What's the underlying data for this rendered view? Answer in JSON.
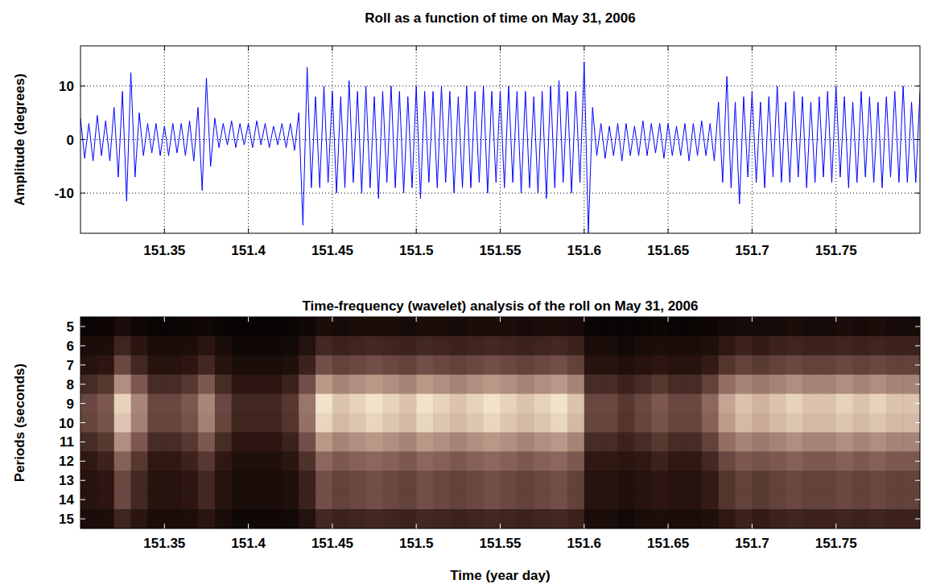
{
  "chart_data": [
    {
      "type": "line",
      "title": "Roll as a function of time on May 31, 2006",
      "y_label": "Amplitude (degrees)",
      "color": "#0000ff",
      "grid": true,
      "xlim": [
        151.3,
        151.8
      ],
      "ylim": [
        -17.5,
        17.5
      ],
      "xticks": [
        151.35,
        151.4,
        151.45,
        151.5,
        151.55,
        151.6,
        151.65,
        151.7,
        151.75
      ],
      "yticks": [
        -10,
        0,
        10
      ],
      "x": [
        151.3,
        151.3025,
        151.305,
        151.3075,
        151.31,
        151.3125,
        151.315,
        151.3175,
        151.32,
        151.3225,
        151.325,
        151.3275,
        151.33,
        151.3325,
        151.335,
        151.3375,
        151.34,
        151.3425,
        151.345,
        151.3475,
        151.35,
        151.3525,
        151.355,
        151.3575,
        151.36,
        151.3625,
        151.365,
        151.3675,
        151.37,
        151.3725,
        151.375,
        151.3775,
        151.38,
        151.3825,
        151.385,
        151.3875,
        151.39,
        151.3925,
        151.395,
        151.3975,
        151.4,
        151.4025,
        151.405,
        151.4075,
        151.41,
        151.4125,
        151.415,
        151.4175,
        151.42,
        151.4225,
        151.425,
        151.4275,
        151.43,
        151.4325,
        151.435,
        151.4375,
        151.44,
        151.4425,
        151.445,
        151.4475,
        151.45,
        151.4525,
        151.455,
        151.4575,
        151.46,
        151.4625,
        151.465,
        151.4675,
        151.47,
        151.4725,
        151.475,
        151.4775,
        151.48,
        151.4825,
        151.485,
        151.4875,
        151.49,
        151.4925,
        151.495,
        151.4975,
        151.5,
        151.5025,
        151.505,
        151.5075,
        151.51,
        151.5125,
        151.515,
        151.5175,
        151.52,
        151.5225,
        151.525,
        151.5275,
        151.53,
        151.5325,
        151.535,
        151.5375,
        151.54,
        151.5425,
        151.545,
        151.5475,
        151.55,
        151.5525,
        151.555,
        151.5575,
        151.56,
        151.5625,
        151.565,
        151.5675,
        151.57,
        151.5725,
        151.575,
        151.5775,
        151.58,
        151.5825,
        151.585,
        151.5875,
        151.59,
        151.5925,
        151.595,
        151.5975,
        151.6,
        151.6025,
        151.605,
        151.6075,
        151.61,
        151.6125,
        151.615,
        151.6175,
        151.62,
        151.6225,
        151.625,
        151.6275,
        151.63,
        151.6325,
        151.635,
        151.6375,
        151.64,
        151.6425,
        151.645,
        151.6475,
        151.65,
        151.6525,
        151.655,
        151.6575,
        151.66,
        151.6625,
        151.665,
        151.6675,
        151.67,
        151.6725,
        151.675,
        151.6775,
        151.68,
        151.6825,
        151.685,
        151.6875,
        151.69,
        151.6925,
        151.695,
        151.6975,
        151.7,
        151.7025,
        151.705,
        151.7075,
        151.71,
        151.7125,
        151.715,
        151.7175,
        151.72,
        151.7225,
        151.725,
        151.7275,
        151.73,
        151.7325,
        151.735,
        151.7375,
        151.74,
        151.7425,
        151.745,
        151.7475,
        151.75,
        151.7525,
        151.755,
        151.7575,
        151.76,
        151.7625,
        151.765,
        151.7675,
        151.77,
        151.7725,
        151.775,
        151.7775,
        151.78,
        151.7825,
        151.785,
        151.7875,
        151.79,
        151.7925,
        151.795,
        151.7975,
        151.8
      ],
      "values": [
        4,
        -3.5,
        3,
        -4,
        4.5,
        -3,
        3.5,
        -4,
        6,
        -7,
        9,
        -11.5,
        12.5,
        -7,
        5,
        -3,
        3,
        -2.5,
        3,
        -3,
        2.5,
        -3,
        3,
        -2.5,
        3,
        -3,
        3.5,
        -4,
        6,
        -9.5,
        11.5,
        -5,
        4,
        -1.5,
        3,
        -1,
        3.5,
        -1.5,
        3,
        -1,
        3,
        -1.5,
        3.5,
        -1,
        3,
        -1.5,
        2.5,
        -1,
        3,
        -1.5,
        3,
        -2,
        5,
        -16,
        13.5,
        -9,
        8,
        -9,
        10,
        -8,
        9,
        -10,
        8,
        -9,
        11,
        -8,
        9,
        -10,
        10,
        -9,
        8,
        -11,
        9,
        -8,
        10,
        -9,
        9,
        -10,
        8,
        -9,
        10,
        -11,
        9,
        -8,
        9,
        -9,
        10,
        -8,
        9,
        -10,
        8,
        -9,
        10,
        -9,
        9,
        -8,
        10,
        -10,
        9,
        -8,
        9,
        -9,
        10,
        -8,
        9,
        -10,
        9,
        -9,
        8,
        -10,
        9,
        -11,
        10,
        -9,
        11,
        -8,
        9,
        -10,
        9,
        -8,
        14.5,
        -17.5,
        6,
        -3,
        3,
        -3.5,
        2.5,
        -3,
        3,
        -4,
        3,
        -3,
        2.5,
        -3,
        3.5,
        -3,
        3,
        -2.5,
        3,
        -3.5,
        3,
        -3,
        2.5,
        -3,
        3,
        -4,
        3,
        -3,
        3.5,
        -3,
        3,
        -4,
        7,
        -8,
        11.8,
        -9,
        7,
        -12,
        8,
        -7,
        9,
        -8,
        7,
        -9,
        8,
        -7,
        10,
        -8,
        7,
        -8,
        9,
        -7,
        8,
        -9,
        7,
        -8,
        8,
        -7,
        9,
        -8,
        10,
        -7,
        8,
        -9,
        7,
        -8,
        9,
        -7,
        8,
        -8,
        7,
        -9,
        8,
        -7,
        9,
        -8,
        10,
        -8,
        7,
        -8,
        9
      ]
    },
    {
      "type": "heatmap",
      "title": "Time-frequency (wavelet) analysis of the roll on May 31, 2006",
      "x_label": "Time (year day)",
      "y_label": "Periods (seconds)",
      "grid": false,
      "xlim": [
        151.3,
        151.8
      ],
      "ylim": [
        4.5,
        15.5
      ],
      "xticks": [
        151.35,
        151.4,
        151.45,
        151.5,
        151.55,
        151.6,
        151.65,
        151.7,
        151.75
      ],
      "yticks": [
        5,
        6,
        7,
        8,
        9,
        10,
        11,
        12,
        13,
        14,
        15
      ],
      "x": [
        151.305,
        151.315,
        151.325,
        151.335,
        151.345,
        151.355,
        151.365,
        151.375,
        151.385,
        151.395,
        151.405,
        151.415,
        151.425,
        151.435,
        151.445,
        151.455,
        151.465,
        151.475,
        151.485,
        151.495,
        151.505,
        151.515,
        151.525,
        151.535,
        151.545,
        151.555,
        151.565,
        151.575,
        151.585,
        151.595,
        151.605,
        151.615,
        151.625,
        151.635,
        151.645,
        151.655,
        151.665,
        151.675,
        151.685,
        151.695,
        151.705,
        151.715,
        151.725,
        151.735,
        151.745,
        151.755,
        151.765,
        151.775,
        151.785,
        151.795
      ],
      "y": [
        5,
        6,
        7,
        8,
        9,
        10,
        11,
        12,
        13,
        14,
        15
      ],
      "values": [
        [
          0.03,
          0.04,
          0.08,
          0.05,
          0.03,
          0.03,
          0.04,
          0.05,
          0.03,
          0.02,
          0.02,
          0.02,
          0.03,
          0.05,
          0.08,
          0.07,
          0.08,
          0.08,
          0.08,
          0.07,
          0.08,
          0.08,
          0.07,
          0.08,
          0.08,
          0.08,
          0.07,
          0.08,
          0.08,
          0.07,
          0.03,
          0.03,
          0.03,
          0.03,
          0.04,
          0.03,
          0.03,
          0.04,
          0.06,
          0.07,
          0.07,
          0.07,
          0.08,
          0.07,
          0.07,
          0.08,
          0.07,
          0.08,
          0.07,
          0.07
        ],
        [
          0.08,
          0.09,
          0.19,
          0.13,
          0.08,
          0.08,
          0.09,
          0.13,
          0.08,
          0.05,
          0.05,
          0.05,
          0.06,
          0.11,
          0.2,
          0.18,
          0.19,
          0.2,
          0.19,
          0.18,
          0.2,
          0.19,
          0.18,
          0.19,
          0.2,
          0.19,
          0.18,
          0.19,
          0.2,
          0.18,
          0.08,
          0.08,
          0.06,
          0.08,
          0.09,
          0.08,
          0.08,
          0.1,
          0.15,
          0.18,
          0.16,
          0.18,
          0.19,
          0.18,
          0.18,
          0.19,
          0.18,
          0.19,
          0.18,
          0.18
        ],
        [
          0.12,
          0.14,
          0.3,
          0.2,
          0.12,
          0.12,
          0.14,
          0.2,
          0.12,
          0.08,
          0.08,
          0.08,
          0.1,
          0.18,
          0.32,
          0.28,
          0.3,
          0.32,
          0.3,
          0.28,
          0.32,
          0.3,
          0.28,
          0.3,
          0.32,
          0.3,
          0.28,
          0.3,
          0.32,
          0.28,
          0.12,
          0.12,
          0.1,
          0.12,
          0.14,
          0.12,
          0.12,
          0.16,
          0.24,
          0.28,
          0.26,
          0.28,
          0.3,
          0.28,
          0.28,
          0.3,
          0.28,
          0.3,
          0.28,
          0.28
        ],
        [
          0.21,
          0.25,
          0.53,
          0.35,
          0.21,
          0.21,
          0.25,
          0.35,
          0.21,
          0.14,
          0.14,
          0.14,
          0.18,
          0.32,
          0.56,
          0.49,
          0.53,
          0.56,
          0.53,
          0.49,
          0.56,
          0.53,
          0.49,
          0.53,
          0.56,
          0.53,
          0.49,
          0.53,
          0.56,
          0.49,
          0.21,
          0.21,
          0.18,
          0.21,
          0.25,
          0.21,
          0.21,
          0.28,
          0.42,
          0.49,
          0.46,
          0.49,
          0.53,
          0.49,
          0.49,
          0.53,
          0.49,
          0.53,
          0.49,
          0.49
        ],
        [
          0.3,
          0.35,
          0.75,
          0.5,
          0.3,
          0.3,
          0.35,
          0.5,
          0.3,
          0.2,
          0.2,
          0.2,
          0.25,
          0.45,
          0.8,
          0.7,
          0.75,
          0.8,
          0.75,
          0.7,
          0.8,
          0.75,
          0.7,
          0.75,
          0.8,
          0.75,
          0.7,
          0.75,
          0.8,
          0.7,
          0.3,
          0.3,
          0.25,
          0.3,
          0.35,
          0.3,
          0.3,
          0.4,
          0.6,
          0.7,
          0.65,
          0.7,
          0.75,
          0.7,
          0.7,
          0.75,
          0.7,
          0.75,
          0.7,
          0.7
        ],
        [
          0.29,
          0.33,
          0.71,
          0.48,
          0.29,
          0.29,
          0.33,
          0.48,
          0.29,
          0.19,
          0.19,
          0.19,
          0.24,
          0.43,
          0.76,
          0.67,
          0.71,
          0.76,
          0.71,
          0.67,
          0.76,
          0.71,
          0.67,
          0.71,
          0.76,
          0.71,
          0.67,
          0.71,
          0.76,
          0.67,
          0.29,
          0.29,
          0.24,
          0.29,
          0.33,
          0.29,
          0.29,
          0.38,
          0.57,
          0.67,
          0.62,
          0.67,
          0.71,
          0.67,
          0.67,
          0.71,
          0.67,
          0.71,
          0.67,
          0.67
        ],
        [
          0.21,
          0.25,
          0.53,
          0.35,
          0.21,
          0.21,
          0.25,
          0.35,
          0.21,
          0.14,
          0.14,
          0.14,
          0.18,
          0.32,
          0.56,
          0.49,
          0.53,
          0.56,
          0.53,
          0.49,
          0.56,
          0.53,
          0.49,
          0.53,
          0.56,
          0.53,
          0.49,
          0.53,
          0.56,
          0.49,
          0.21,
          0.21,
          0.18,
          0.21,
          0.25,
          0.21,
          0.21,
          0.28,
          0.42,
          0.49,
          0.46,
          0.49,
          0.53,
          0.49,
          0.49,
          0.53,
          0.49,
          0.53,
          0.49,
          0.49
        ],
        [
          0.15,
          0.18,
          0.38,
          0.25,
          0.15,
          0.15,
          0.18,
          0.25,
          0.15,
          0.1,
          0.1,
          0.1,
          0.13,
          0.23,
          0.4,
          0.35,
          0.38,
          0.4,
          0.38,
          0.35,
          0.4,
          0.38,
          0.35,
          0.38,
          0.4,
          0.38,
          0.35,
          0.38,
          0.4,
          0.35,
          0.15,
          0.15,
          0.13,
          0.15,
          0.18,
          0.15,
          0.15,
          0.2,
          0.3,
          0.35,
          0.33,
          0.35,
          0.38,
          0.35,
          0.35,
          0.38,
          0.35,
          0.38,
          0.35,
          0.35
        ],
        [
          0.12,
          0.14,
          0.3,
          0.2,
          0.12,
          0.12,
          0.14,
          0.2,
          0.12,
          0.08,
          0.08,
          0.08,
          0.1,
          0.18,
          0.32,
          0.28,
          0.3,
          0.32,
          0.3,
          0.28,
          0.32,
          0.3,
          0.28,
          0.3,
          0.32,
          0.3,
          0.28,
          0.3,
          0.32,
          0.28,
          0.12,
          0.12,
          0.1,
          0.12,
          0.14,
          0.12,
          0.12,
          0.16,
          0.24,
          0.28,
          0.26,
          0.28,
          0.3,
          0.28,
          0.28,
          0.3,
          0.28,
          0.3,
          0.28,
          0.28
        ],
        [
          0.12,
          0.14,
          0.3,
          0.2,
          0.12,
          0.12,
          0.14,
          0.2,
          0.12,
          0.08,
          0.08,
          0.08,
          0.1,
          0.18,
          0.32,
          0.28,
          0.3,
          0.32,
          0.3,
          0.28,
          0.32,
          0.3,
          0.28,
          0.3,
          0.32,
          0.3,
          0.28,
          0.3,
          0.32,
          0.28,
          0.12,
          0.12,
          0.1,
          0.12,
          0.14,
          0.12,
          0.12,
          0.16,
          0.24,
          0.28,
          0.26,
          0.28,
          0.3,
          0.28,
          0.28,
          0.3,
          0.28,
          0.3,
          0.28,
          0.28
        ],
        [
          0.08,
          0.09,
          0.19,
          0.13,
          0.08,
          0.08,
          0.09,
          0.13,
          0.08,
          0.05,
          0.05,
          0.05,
          0.06,
          0.11,
          0.2,
          0.18,
          0.19,
          0.2,
          0.19,
          0.18,
          0.2,
          0.19,
          0.18,
          0.19,
          0.2,
          0.19,
          0.18,
          0.19,
          0.2,
          0.18,
          0.08,
          0.08,
          0.06,
          0.08,
          0.09,
          0.08,
          0.08,
          0.1,
          0.15,
          0.18,
          0.16,
          0.18,
          0.19,
          0.18,
          0.18,
          0.19,
          0.18,
          0.19,
          0.18,
          0.18
        ]
      ]
    }
  ]
}
